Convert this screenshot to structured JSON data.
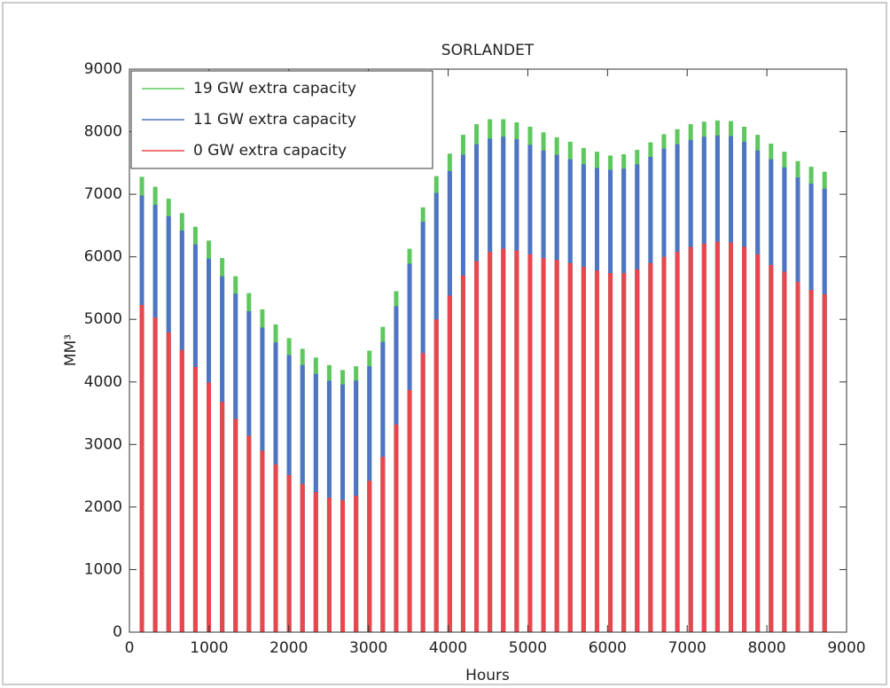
{
  "chart_data": {
    "type": "bar",
    "title": "SORLANDET",
    "xlabel": "Hours",
    "ylabel": "MM³",
    "x": [
      156,
      324,
      492,
      660,
      828,
      996,
      1164,
      1332,
      1500,
      1668,
      1836,
      2004,
      2172,
      2340,
      2508,
      2676,
      2844,
      3012,
      3180,
      3348,
      3516,
      3684,
      3852,
      4020,
      4188,
      4356,
      4524,
      4692,
      4860,
      5028,
      5196,
      5364,
      5532,
      5700,
      5868,
      6036,
      6204,
      6372,
      6540,
      6708,
      6876,
      7044,
      7212,
      7380,
      7548,
      7716,
      7884,
      8052,
      8220,
      8388,
      8556,
      8724
    ],
    "series": [
      {
        "name": "19 GW extra capacity",
        "color": "#5ec85e",
        "values": [
          7280,
          7120,
          6930,
          6700,
          6480,
          6260,
          5980,
          5690,
          5420,
          5160,
          4920,
          4700,
          4530,
          4390,
          4270,
          4190,
          4250,
          4500,
          4880,
          5450,
          6130,
          6790,
          7290,
          7650,
          7950,
          8120,
          8200,
          8200,
          8150,
          8080,
          7990,
          7910,
          7840,
          7740,
          7680,
          7620,
          7640,
          7710,
          7830,
          7960,
          8040,
          8120,
          8160,
          8180,
          8170,
          8080,
          7950,
          7810,
          7680,
          7530,
          7440,
          7360
        ]
      },
      {
        "name": "11 GW extra capacity",
        "color": "#4f74c4",
        "values": [
          6980,
          6830,
          6650,
          6420,
          6200,
          5970,
          5690,
          5410,
          5130,
          4870,
          4630,
          4430,
          4270,
          4130,
          4020,
          3960,
          4020,
          4250,
          4640,
          5210,
          5890,
          6560,
          7020,
          7370,
          7630,
          7800,
          7890,
          7920,
          7880,
          7790,
          7700,
          7630,
          7560,
          7480,
          7420,
          7390,
          7410,
          7480,
          7600,
          7730,
          7800,
          7870,
          7920,
          7940,
          7930,
          7840,
          7700,
          7560,
          7430,
          7270,
          7170,
          7090
        ]
      },
      {
        "name": "0 GW extra capacity",
        "color": "#e8484d",
        "values": [
          5230,
          5030,
          4790,
          4510,
          4240,
          3990,
          3680,
          3410,
          3140,
          2900,
          2680,
          2510,
          2370,
          2240,
          2150,
          2110,
          2180,
          2420,
          2800,
          3320,
          3870,
          4460,
          5000,
          5380,
          5700,
          5930,
          6080,
          6130,
          6100,
          6040,
          5980,
          5950,
          5900,
          5840,
          5780,
          5740,
          5740,
          5800,
          5900,
          6000,
          6080,
          6160,
          6210,
          6240,
          6230,
          6160,
          6040,
          5870,
          5760,
          5600,
          5470,
          5400
        ]
      }
    ],
    "xlim": [
      0,
      9000
    ],
    "xticks": [
      0,
      1000,
      2000,
      3000,
      4000,
      5000,
      6000,
      7000,
      8000,
      9000
    ],
    "ylim": [
      0,
      9000
    ],
    "yticks": [
      0,
      1000,
      2000,
      3000,
      4000,
      5000,
      6000,
      7000,
      8000,
      9000
    ],
    "grid": false,
    "legend": "upper left"
  }
}
